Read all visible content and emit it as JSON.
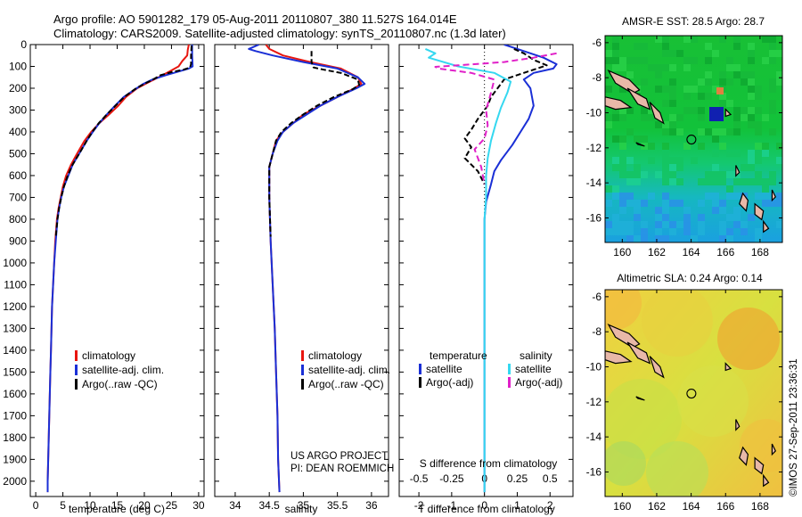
{
  "title_line1": "Argo profile: AO 5901282_179 05-Aug-2011 20110807_380 11.527S 164.014E",
  "title_line2": "Climatology: CARS2009. Satellite-adjusted climatology: synTS_20110807.nc (1.3d later)",
  "credit": "US ARGO PROJECT",
  "pi": "PI: DEAN ROEMMICH",
  "stamp": "©IMOS 27-Sep-2011 23:36:31",
  "colors": {
    "climatology": "#e8160f",
    "satellite": "#1a2fd6",
    "argo": "#000000",
    "sat_salinity": "#35d8f0",
    "argo_salinity": "#e020c8"
  },
  "chart_data": [
    {
      "type": "line",
      "name": "temperature-profile",
      "xlabel": "temperature (deg C)",
      "ylabel": "",
      "xlim": [
        -1,
        31
      ],
      "ylim": [
        2070,
        0
      ],
      "xticks": [
        0,
        5,
        10,
        15,
        20,
        25,
        30
      ],
      "yticks": [
        0,
        100,
        200,
        300,
        400,
        500,
        600,
        700,
        800,
        900,
        1000,
        1100,
        1200,
        1300,
        1400,
        1500,
        1600,
        1700,
        1800,
        1900,
        2000
      ],
      "legend": {
        "placement": "bottom-left",
        "entries": [
          "climatology",
          "satellite-adj. clim.",
          "Argo(..raw -QC)"
        ]
      },
      "series": [
        {
          "name": "climatology",
          "color": "#e8160f",
          "points": [
            [
              28.2,
              0
            ],
            [
              28.0,
              25
            ],
            [
              27.9,
              50
            ],
            [
              27.0,
              75
            ],
            [
              26.3,
              100
            ],
            [
              24.5,
              125
            ],
            [
              22.6,
              150
            ],
            [
              20.6,
              175
            ],
            [
              18.7,
              200
            ],
            [
              16.6,
              240
            ],
            [
              15.2,
              280
            ],
            [
              13.5,
              320
            ],
            [
              11.7,
              360
            ],
            [
              10.2,
              400
            ],
            [
              9.0,
              440
            ],
            [
              7.6,
              500
            ],
            [
              6.5,
              550
            ],
            [
              5.6,
              600
            ],
            [
              5.0,
              650
            ],
            [
              4.6,
              700
            ],
            [
              4.2,
              750
            ],
            [
              3.9,
              800
            ],
            [
              3.6,
              900
            ],
            [
              3.4,
              1000
            ],
            [
              3.2,
              1100
            ],
            [
              3.0,
              1200
            ],
            [
              2.9,
              1300
            ],
            [
              2.8,
              1400
            ],
            [
              2.7,
              1500
            ],
            [
              2.6,
              1600
            ],
            [
              2.5,
              1700
            ],
            [
              2.4,
              1800
            ],
            [
              2.3,
              1900
            ],
            [
              2.2,
              2000
            ],
            [
              2.2,
              2050
            ]
          ]
        },
        {
          "name": "satellite-adj. clim.",
          "color": "#1a2fd6",
          "points": [
            [
              28.8,
              0
            ],
            [
              28.8,
              50
            ],
            [
              28.9,
              100
            ],
            [
              28.2,
              110
            ],
            [
              24.0,
              140
            ],
            [
              21.5,
              160
            ],
            [
              19.8,
              180
            ],
            [
              18.6,
              200
            ],
            [
              16.2,
              240
            ],
            [
              14.6,
              280
            ],
            [
              13.1,
              320
            ],
            [
              11.7,
              360
            ],
            [
              10.5,
              400
            ],
            [
              9.4,
              440
            ],
            [
              8.0,
              500
            ],
            [
              6.8,
              550
            ],
            [
              6.0,
              600
            ],
            [
              5.2,
              650
            ],
            [
              4.7,
              700
            ],
            [
              4.3,
              750
            ],
            [
              4.0,
              800
            ],
            [
              3.7,
              900
            ],
            [
              3.4,
              1000
            ],
            [
              3.2,
              1100
            ],
            [
              3.0,
              1200
            ],
            [
              2.9,
              1300
            ],
            [
              2.8,
              1400
            ],
            [
              2.7,
              1500
            ],
            [
              2.6,
              1600
            ],
            [
              2.5,
              1700
            ],
            [
              2.4,
              1800
            ],
            [
              2.3,
              1900
            ],
            [
              2.2,
              2000
            ],
            [
              2.2,
              2050
            ]
          ]
        },
        {
          "name": "Argo(..raw -QC)",
          "color": "#000000",
          "points": [
            [
              28.7,
              5
            ],
            [
              28.6,
              50
            ],
            [
              28.6,
              90
            ],
            [
              28.4,
              105
            ],
            [
              27.2,
              115
            ],
            [
              25.2,
              125
            ],
            [
              23.0,
              140
            ],
            [
              21.6,
              160
            ],
            [
              20.0,
              180
            ],
            [
              18.5,
              200
            ],
            [
              16.3,
              240
            ],
            [
              14.7,
              280
            ],
            [
              13.1,
              320
            ],
            [
              11.6,
              360
            ],
            [
              10.4,
              400
            ],
            [
              9.4,
              440
            ],
            [
              8.0,
              500
            ],
            [
              6.8,
              550
            ],
            [
              5.9,
              600
            ],
            [
              5.2,
              650
            ],
            [
              4.7,
              700
            ],
            [
              4.3,
              750
            ],
            [
              4.0,
              800
            ],
            [
              3.7,
              880
            ]
          ]
        }
      ]
    },
    {
      "type": "line",
      "name": "salinity-profile",
      "xlabel": "salinity",
      "xlim": [
        33.7,
        36.25
      ],
      "ylim": [
        2070,
        0
      ],
      "xticks": [
        34,
        34.5,
        35,
        35.5,
        36
      ],
      "legend": {
        "placement": "bottom-right",
        "entries": [
          "climatology",
          "satellite-adj. clim.",
          "Argo(..raw -QC)"
        ]
      },
      "series": [
        {
          "name": "climatology",
          "color": "#e8160f",
          "points": [
            [
              34.45,
              0
            ],
            [
              34.5,
              20
            ],
            [
              34.7,
              50
            ],
            [
              35.1,
              80
            ],
            [
              35.55,
              110
            ],
            [
              35.8,
              150
            ],
            [
              35.85,
              180
            ],
            [
              35.75,
              200
            ],
            [
              35.5,
              240
            ],
            [
              35.25,
              280
            ],
            [
              35.0,
              320
            ],
            [
              34.85,
              360
            ],
            [
              34.7,
              400
            ],
            [
              34.6,
              440
            ],
            [
              34.55,
              500
            ],
            [
              34.5,
              560
            ],
            [
              34.5,
              700
            ],
            [
              34.52,
              900
            ],
            [
              34.55,
              1100
            ],
            [
              34.58,
              1300
            ],
            [
              34.6,
              1500
            ],
            [
              34.62,
              1700
            ],
            [
              34.63,
              1900
            ],
            [
              34.65,
              2050
            ]
          ]
        },
        {
          "name": "satellite-adj. clim.",
          "color": "#1a2fd6",
          "points": [
            [
              34.35,
              0
            ],
            [
              34.2,
              20
            ],
            [
              34.3,
              30
            ],
            [
              34.55,
              50
            ],
            [
              35.0,
              80
            ],
            [
              35.5,
              110
            ],
            [
              35.8,
              150
            ],
            [
              35.9,
              180
            ],
            [
              35.78,
              200
            ],
            [
              35.5,
              240
            ],
            [
              35.25,
              280
            ],
            [
              35.05,
              320
            ],
            [
              34.85,
              360
            ],
            [
              34.7,
              400
            ],
            [
              34.62,
              440
            ],
            [
              34.55,
              500
            ],
            [
              34.5,
              560
            ],
            [
              34.5,
              700
            ],
            [
              34.52,
              900
            ],
            [
              34.55,
              1100
            ],
            [
              34.58,
              1300
            ],
            [
              34.6,
              1500
            ],
            [
              34.62,
              1700
            ],
            [
              34.63,
              1900
            ],
            [
              34.65,
              2050
            ]
          ]
        },
        {
          "name": "Argo(..raw -QC)",
          "color": "#000000",
          "points": [
            [
              35.12,
              30
            ],
            [
              35.12,
              80
            ],
            [
              35.15,
              105
            ],
            [
              35.3,
              115
            ],
            [
              35.55,
              130
            ],
            [
              35.8,
              160
            ],
            [
              35.82,
              185
            ],
            [
              35.72,
              205
            ],
            [
              35.45,
              240
            ],
            [
              35.2,
              280
            ],
            [
              35.0,
              320
            ],
            [
              34.82,
              360
            ],
            [
              34.68,
              400
            ],
            [
              34.6,
              440
            ],
            [
              34.55,
              500
            ],
            [
              34.5,
              560
            ],
            [
              34.5,
              700
            ],
            [
              34.52,
              880
            ]
          ]
        }
      ]
    },
    {
      "type": "line",
      "name": "difference-profile",
      "xlabel": "T difference from climatology",
      "x2label": "S difference from climatology",
      "xlim": [
        -2.6,
        2.7
      ],
      "ylim": [
        2070,
        0
      ],
      "xticks": [
        -2,
        -1,
        0,
        1,
        2
      ],
      "x2ticks": [
        -0.5,
        -0.25,
        0,
        0.25,
        0.5
      ],
      "zero_line": 0,
      "legend": {
        "placement": "bottom",
        "entries": [
          "temperature",
          "satellite",
          "Argo(-adj)",
          "salinity",
          "satellite",
          "Argo(-adj)"
        ]
      },
      "series": [
        {
          "name": "temperature satellite",
          "color": "#1a2fd6",
          "points": [
            [
              0.6,
              0
            ],
            [
              0.9,
              15
            ],
            [
              1.2,
              30
            ],
            [
              1.8,
              60
            ],
            [
              2.2,
              90
            ],
            [
              2.1,
              110
            ],
            [
              1.5,
              130
            ],
            [
              1.2,
              160
            ],
            [
              1.4,
              200
            ],
            [
              1.5,
              280
            ],
            [
              1.35,
              340
            ],
            [
              1.1,
              400
            ],
            [
              0.85,
              460
            ],
            [
              0.5,
              530
            ],
            [
              0.3,
              580
            ],
            [
              0.2,
              640
            ],
            [
              0.05,
              720
            ],
            [
              0.0,
              800
            ],
            [
              0.0,
              1000
            ],
            [
              0.0,
              2050
            ]
          ]
        },
        {
          "name": "temperature Argo(-adj)",
          "color": "#000000",
          "points": [
            [
              0.9,
              20
            ],
            [
              1.2,
              40
            ],
            [
              1.5,
              70
            ],
            [
              1.9,
              95
            ],
            [
              1.5,
              115
            ],
            [
              1.2,
              130
            ],
            [
              0.6,
              160
            ],
            [
              0.4,
              200
            ],
            [
              0.2,
              240
            ],
            [
              0.1,
              280
            ],
            [
              -0.2,
              340
            ],
            [
              -0.4,
              390
            ],
            [
              -0.6,
              430
            ],
            [
              -0.4,
              470
            ],
            [
              -0.6,
              520
            ],
            [
              -0.2,
              580
            ],
            [
              0.0,
              640
            ]
          ]
        },
        {
          "name": "salinity satellite",
          "color": "#35d8f0",
          "points": [
            [
              -1.8,
              20
            ],
            [
              -1.5,
              40
            ],
            [
              -1.7,
              60
            ],
            [
              -0.8,
              100
            ],
            [
              0.3,
              130
            ],
            [
              0.8,
              170
            ],
            [
              0.7,
              220
            ],
            [
              0.5,
              290
            ],
            [
              0.35,
              360
            ],
            [
              0.2,
              440
            ],
            [
              0.1,
              520
            ],
            [
              0.05,
              600
            ],
            [
              0.05,
              700
            ],
            [
              0.0,
              800
            ],
            [
              0.0,
              1000
            ],
            [
              0.0,
              2050
            ]
          ]
        },
        {
          "name": "salinity Argo(-adj)",
          "color": "#e020c8",
          "points": [
            [
              2.2,
              40
            ],
            [
              1.5,
              60
            ],
            [
              0.6,
              80
            ],
            [
              -0.8,
              95
            ],
            [
              -1.5,
              102
            ],
            [
              -1.4,
              110
            ],
            [
              -0.4,
              130
            ],
            [
              0.3,
              160
            ],
            [
              0.2,
              220
            ],
            [
              0.05,
              300
            ],
            [
              0.1,
              370
            ],
            [
              0.0,
              430
            ],
            [
              -0.3,
              480
            ],
            [
              -0.1,
              560
            ],
            [
              0.0,
              640
            ]
          ]
        }
      ]
    },
    {
      "type": "heatmap",
      "name": "sst-map",
      "title": "AMSR-E SST: 28.5 Argo: 28.7",
      "xlim": [
        159,
        169.3
      ],
      "ylim": [
        -17.4,
        -5.6
      ],
      "xticks": [
        160,
        162,
        164,
        166,
        168
      ],
      "yticks": [
        -6,
        -8,
        -10,
        -12,
        -14,
        -16
      ],
      "marker": {
        "lon": 164.014,
        "lat": -11.527
      }
    },
    {
      "type": "heatmap",
      "name": "sla-map",
      "title": "Altimetric SLA: 0.24 Argo: 0.14",
      "xlim": [
        159,
        169.3
      ],
      "ylim": [
        -17.4,
        -5.6
      ],
      "xticks": [
        160,
        162,
        164,
        166,
        168
      ],
      "yticks": [
        -6,
        -8,
        -10,
        -12,
        -14,
        -16
      ],
      "marker": {
        "lon": 164.014,
        "lat": -11.527
      }
    }
  ]
}
